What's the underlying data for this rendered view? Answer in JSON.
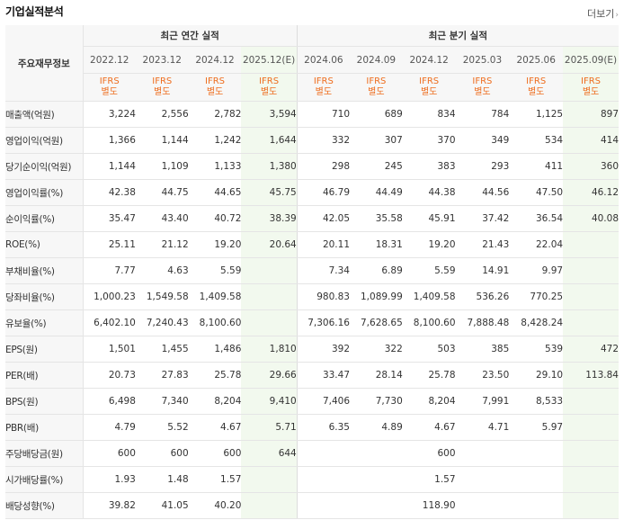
{
  "header": {
    "title": "기업실적분석",
    "more_label": "더보기"
  },
  "table": {
    "row_head": "주요재무정보",
    "groups": [
      "최근 연간 실적",
      "최근 분기 실적"
    ],
    "periods": [
      "2022.12",
      "2023.12",
      "2024.12",
      "2025.12(E)",
      "2024.06",
      "2024.09",
      "2024.12",
      "2025.03",
      "2025.06",
      "2025.09(E)"
    ],
    "ifrs_line1": "IFRS",
    "ifrs_line2": "별도",
    "rows": [
      {
        "label": "매출액(억원)",
        "values": [
          "3,224",
          "2,556",
          "2,782",
          "3,594",
          "710",
          "689",
          "834",
          "784",
          "1,125",
          "897"
        ]
      },
      {
        "label": "영업이익(억원)",
        "values": [
          "1,366",
          "1,144",
          "1,242",
          "1,644",
          "332",
          "307",
          "370",
          "349",
          "534",
          "414"
        ]
      },
      {
        "label": "당기순이익(억원)",
        "values": [
          "1,144",
          "1,109",
          "1,133",
          "1,380",
          "298",
          "245",
          "383",
          "293",
          "411",
          "360"
        ]
      },
      {
        "label": "영업이익률(%)",
        "values": [
          "42.38",
          "44.75",
          "44.65",
          "45.75",
          "46.79",
          "44.49",
          "44.38",
          "44.56",
          "47.50",
          "46.12"
        ]
      },
      {
        "label": "순이익률(%)",
        "values": [
          "35.47",
          "43.40",
          "40.72",
          "38.39",
          "42.05",
          "35.58",
          "45.91",
          "37.42",
          "36.54",
          "40.08"
        ]
      },
      {
        "label": "ROE(%)",
        "values": [
          "25.11",
          "21.12",
          "19.20",
          "20.64",
          "20.11",
          "18.31",
          "19.20",
          "21.43",
          "22.04",
          ""
        ]
      },
      {
        "label": "부채비율(%)",
        "values": [
          "7.77",
          "4.63",
          "5.59",
          "",
          "7.34",
          "6.89",
          "5.59",
          "14.91",
          "9.97",
          ""
        ]
      },
      {
        "label": "당좌비율(%)",
        "values": [
          "1,000.23",
          "1,549.58",
          "1,409.58",
          "",
          "980.83",
          "1,089.99",
          "1,409.58",
          "536.26",
          "770.25",
          ""
        ]
      },
      {
        "label": "유보율(%)",
        "values": [
          "6,402.10",
          "7,240.43",
          "8,100.60",
          "",
          "7,306.16",
          "7,628.65",
          "8,100.60",
          "7,888.48",
          "8,428.24",
          ""
        ]
      },
      {
        "label": "EPS(원)",
        "values": [
          "1,501",
          "1,455",
          "1,486",
          "1,810",
          "392",
          "322",
          "503",
          "385",
          "539",
          "472"
        ]
      },
      {
        "label": "PER(배)",
        "values": [
          "20.73",
          "27.83",
          "25.78",
          "29.66",
          "33.47",
          "28.14",
          "25.78",
          "23.50",
          "29.10",
          "113.84"
        ]
      },
      {
        "label": "BPS(원)",
        "values": [
          "6,498",
          "7,340",
          "8,204",
          "9,410",
          "7,406",
          "7,730",
          "8,204",
          "7,991",
          "8,533",
          ""
        ]
      },
      {
        "label": "PBR(배)",
        "values": [
          "4.79",
          "5.52",
          "4.67",
          "5.71",
          "6.35",
          "4.89",
          "4.67",
          "4.71",
          "5.97",
          ""
        ]
      },
      {
        "label": "주당배당금(원)",
        "values": [
          "600",
          "600",
          "600",
          "644",
          "",
          "",
          "600",
          "",
          "",
          ""
        ]
      },
      {
        "label": "시가배당률(%)",
        "values": [
          "1.93",
          "1.48",
          "1.57",
          "",
          "",
          "",
          "1.57",
          "",
          "",
          ""
        ]
      },
      {
        "label": "배당성향(%)",
        "values": [
          "39.82",
          "41.05",
          "40.20",
          "",
          "",
          "",
          "118.90",
          "",
          "",
          ""
        ]
      }
    ]
  },
  "colors": {
    "ifrs": "#ee6d1e",
    "estimate_bg": "#f2f9ee",
    "header_bg": "#f7f7f7",
    "border": "#e5e5e5"
  }
}
